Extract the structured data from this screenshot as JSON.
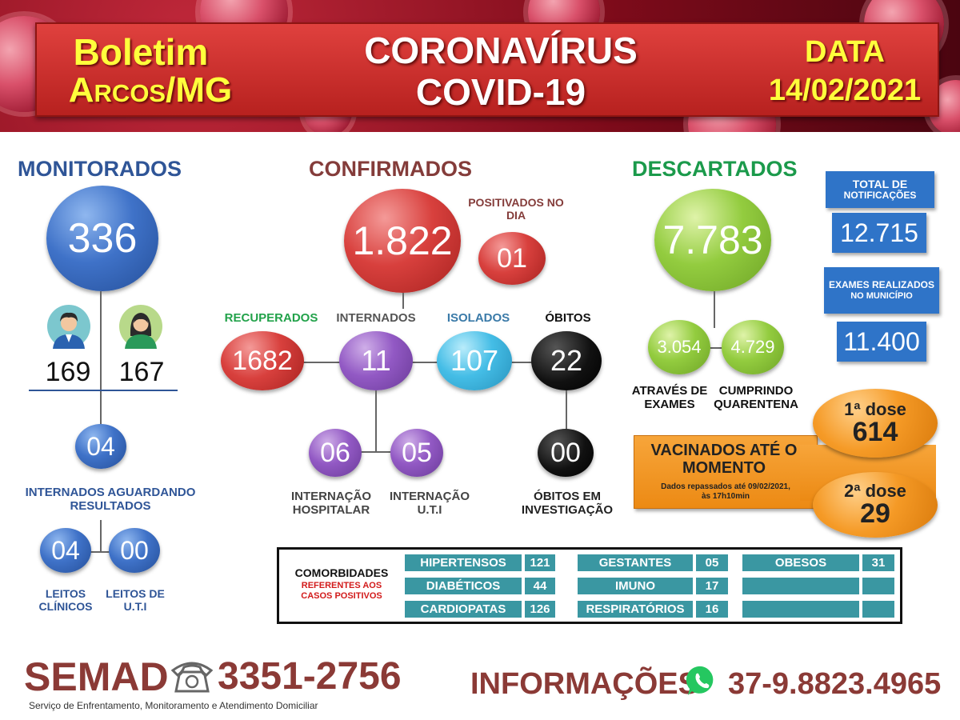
{
  "header": {
    "boletim": "Boletim",
    "city": "Arcos/MG",
    "title_line1": "CORONAVÍRUS",
    "title_line2": "COVID-19",
    "date_label": "DATA",
    "date_value": "14/02/2021"
  },
  "monitorados": {
    "heading": "MONITORADOS",
    "total": "336",
    "men": "169",
    "women": "167",
    "aguardando_value": "04",
    "aguardando_label": "INTERNADOS AGUARDANDO RESULTADOS",
    "leitos_clinicos_value": "04",
    "leitos_clinicos_label": "LEITOS CLÍNICOS",
    "leitos_uti_value": "00",
    "leitos_uti_label": "LEITOS DE U.T.I"
  },
  "confirmados": {
    "heading": "CONFIRMADOS",
    "total": "1.822",
    "positivados_label": "POSITIVADOS NO DIA",
    "positivados_value": "01",
    "recuperados_label": "RECUPERADOS",
    "recuperados_value": "1682",
    "internados_label": "INTERNADOS",
    "internados_value": "11",
    "isolados_label": "ISOLADOS",
    "isolados_value": "107",
    "obitos_label": "ÓBITOS",
    "obitos_value": "22",
    "internacao_hosp_value": "06",
    "internacao_hosp_label": "INTERNAÇÃO HOSPITALAR",
    "internacao_uti_value": "05",
    "internacao_uti_label": "INTERNAÇÃO U.T.I",
    "obitos_investigacao_value": "00",
    "obitos_investigacao_label": "ÓBITOS EM INVESTIGAÇÃO"
  },
  "descartados": {
    "heading": "DESCARTADOS",
    "total": "7.783",
    "exames_value": "3.054",
    "exames_label": "ATRAVÉS DE EXAMES",
    "quarentena_value": "4.729",
    "quarentena_label": "CUMPRINDO QUARENTENA"
  },
  "totals": {
    "notificacoes_label_1": "TOTAL DE",
    "notificacoes_label_2": "NOTIFICAÇÕES",
    "notificacoes_value": "12.715",
    "exames_label_1": "EXAMES REALIZADOS",
    "exames_label_2": "NO MUNICÍPIO",
    "exames_value": "11.400"
  },
  "vacinados": {
    "title": "VACINADOS ATÉ O MOMENTO",
    "note": "Dados repassados até 09/02/2021, às 17h10min",
    "dose1_label": "1ª dose",
    "dose1_value": "614",
    "dose2_label": "2ª dose",
    "dose2_value": "29"
  },
  "comorbidades": {
    "title": "COMORBIDADES",
    "subtitle": "REFERENTES AOS CASOS POSITIVOS",
    "items": [
      {
        "label": "HIPERTENSOS",
        "value": "121"
      },
      {
        "label": "DIABÉTICOS",
        "value": "44"
      },
      {
        "label": "CARDIOPATAS",
        "value": "126"
      },
      {
        "label": "GESTANTES",
        "value": "05"
      },
      {
        "label": "IMUNO",
        "value": "17"
      },
      {
        "label": "RESPIRATÓRIOS",
        "value": "16"
      },
      {
        "label": "OBESOS",
        "value": "31"
      }
    ]
  },
  "footer": {
    "semad": "SEMAD",
    "phone": "3351-2756",
    "semad_desc": "Serviço de Enfrentamento, Monitoramento e Atendimento Domiciliar",
    "info_label": "INFORMAÇÕES",
    "whatsapp": "37-9.8823.4965"
  },
  "colors": {
    "monitorados": "#2f5597",
    "confirmados": "#843c3a",
    "descartados": "#1b9a4b",
    "teal_cell": "#3a97a2",
    "footer_text": "#8b3a36"
  }
}
